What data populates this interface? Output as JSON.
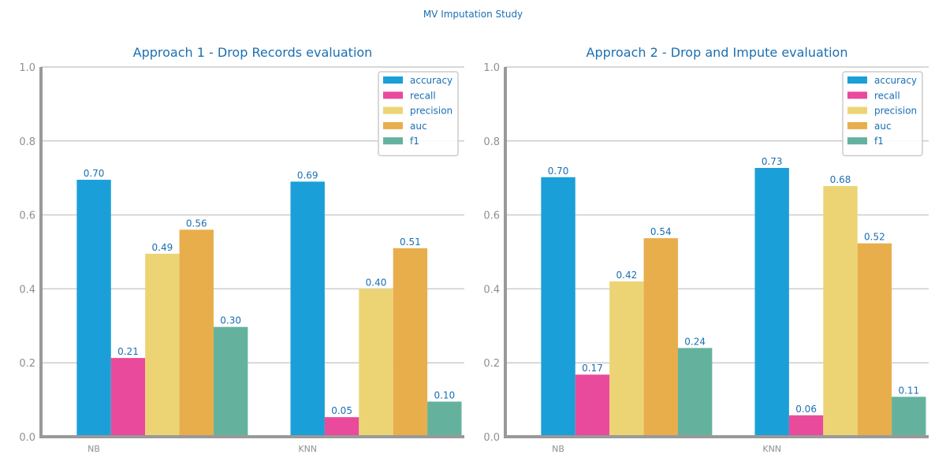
{
  "figure": {
    "suptitle": "MV Imputation Study"
  },
  "chart_data": [
    {
      "type": "bar",
      "title": "Approach 1 - Drop Records evaluation",
      "xlabel": "",
      "ylabel": "",
      "ylim": [
        0,
        1.0
      ],
      "yticks": [
        "0.0",
        "0.2",
        "0.4",
        "0.6",
        "0.8",
        "1.0"
      ],
      "grid": true,
      "legend_position": "top-right",
      "categories": [
        "NB",
        "KNN"
      ],
      "series": [
        {
          "name": "accuracy",
          "color": "#1b9fd8",
          "values": [
            0.695,
            0.69
          ],
          "labels": [
            "0.70",
            "0.69"
          ]
        },
        {
          "name": "recall",
          "color": "#ea4a9b",
          "values": [
            0.213,
            0.053
          ],
          "labels": [
            "0.21",
            "0.05"
          ]
        },
        {
          "name": "precision",
          "color": "#ecd474",
          "values": [
            0.495,
            0.4
          ],
          "labels": [
            "0.49",
            "0.40"
          ]
        },
        {
          "name": "auc",
          "color": "#e8ae4c",
          "values": [
            0.56,
            0.51
          ],
          "labels": [
            "0.56",
            "0.51"
          ]
        },
        {
          "name": "f1",
          "color": "#64b29d",
          "values": [
            0.297,
            0.095
          ],
          "labels": [
            "0.30",
            "0.10"
          ]
        }
      ]
    },
    {
      "type": "bar",
      "title": "Approach 2 - Drop and Impute evaluation",
      "xlabel": "",
      "ylabel": "",
      "ylim": [
        0,
        1.0
      ],
      "yticks": [
        "0.0",
        "0.2",
        "0.4",
        "0.6",
        "0.8",
        "1.0"
      ],
      "grid": true,
      "legend_position": "top-right",
      "categories": [
        "NB",
        "KNN"
      ],
      "series": [
        {
          "name": "accuracy",
          "color": "#1b9fd8",
          "values": [
            0.702,
            0.727
          ],
          "labels": [
            "0.70",
            "0.73"
          ]
        },
        {
          "name": "recall",
          "color": "#ea4a9b",
          "values": [
            0.168,
            0.058
          ],
          "labels": [
            "0.17",
            "0.06"
          ]
        },
        {
          "name": "precision",
          "color": "#ecd474",
          "values": [
            0.42,
            0.678
          ],
          "labels": [
            "0.42",
            "0.68"
          ]
        },
        {
          "name": "auc",
          "color": "#e8ae4c",
          "values": [
            0.537,
            0.523
          ],
          "labels": [
            "0.54",
            "0.52"
          ]
        },
        {
          "name": "f1",
          "color": "#64b29d",
          "values": [
            0.24,
            0.108
          ],
          "labels": [
            "0.24",
            "0.11"
          ]
        }
      ]
    }
  ]
}
